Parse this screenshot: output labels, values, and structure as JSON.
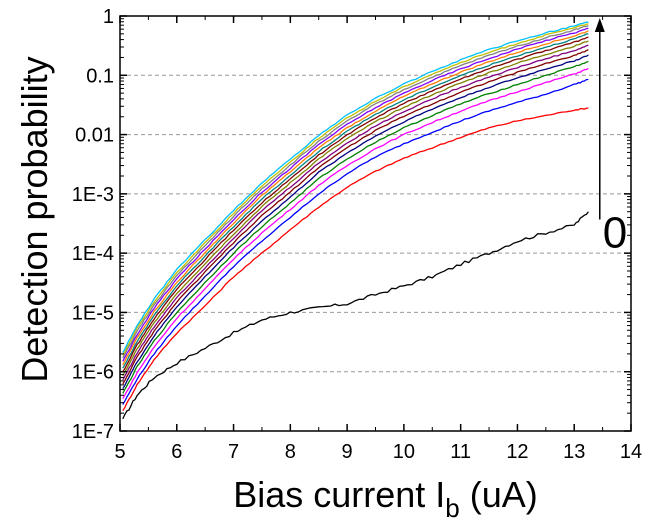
{
  "chart_data": {
    "type": "line",
    "xlabel": "Bias current I_b (uA)",
    "xlabel_main": "Bias current I",
    "xlabel_sub": "b",
    "xlabel_tail": " (uA)",
    "ylabel": "Detection probability",
    "xlim": [
      5,
      14
    ],
    "ylim": [
      1e-07,
      1
    ],
    "y_scale": "log",
    "grid": "horizontal dashed at decades",
    "x_ticks": [
      "5",
      "6",
      "7",
      "8",
      "9",
      "10",
      "11",
      "12",
      "13",
      "14"
    ],
    "y_ticks": [
      "1E-7",
      "1E-6",
      "1E-5",
      "1E-4",
      "1E-3",
      "0.01",
      "0.1",
      "1"
    ],
    "annotation": {
      "text": "0",
      "arrow": "upward, from lowest curve toward top curves at x ≈ 13.45"
    },
    "x": [
      5.05,
      5.3,
      5.6,
      6.0,
      6.5,
      7.0,
      7.5,
      8.0,
      8.5,
      9.0,
      9.5,
      10.0,
      10.5,
      11.0,
      11.5,
      12.0,
      12.5,
      13.0,
      13.25
    ],
    "series": [
      {
        "color": "#000000",
        "values": [
          1.6e-07,
          4e-07,
          8e-07,
          1.4e-06,
          2.5e-06,
          4.5e-06,
          7.5e-06,
          1e-05,
          1.2e-05,
          1.4e-05,
          2e-05,
          2.8e-05,
          4e-05,
          6.5e-05,
          0.0001,
          0.00016,
          0.00022,
          0.0003,
          0.0005
        ]
      },
      {
        "color": "#ff0000",
        "values": [
          2.2e-07,
          6e-07,
          1.6e-06,
          4.5e-06,
          1.3e-05,
          4e-05,
          0.0001,
          0.00025,
          0.0006,
          0.0013,
          0.0024,
          0.004,
          0.006,
          0.009,
          0.013,
          0.017,
          0.021,
          0.026,
          0.028
        ]
      },
      {
        "color": "#0000ff",
        "values": [
          2.8e-07,
          7.5e-07,
          2e-06,
          6e-06,
          1.9e-05,
          6e-05,
          0.00016,
          0.0004,
          0.001,
          0.0022,
          0.0042,
          0.007,
          0.011,
          0.017,
          0.025,
          0.035,
          0.048,
          0.07,
          0.085
        ]
      },
      {
        "color": "#ff00ff",
        "values": [
          3.5e-07,
          9.5e-07,
          2.6e-06,
          8e-06,
          2.5e-05,
          8e-05,
          0.00022,
          0.00055,
          0.0014,
          0.003,
          0.0058,
          0.01,
          0.016,
          0.025,
          0.037,
          0.053,
          0.075,
          0.105,
          0.13
        ]
      },
      {
        "color": "#008000",
        "values": [
          4.3e-07,
          1.2e-06,
          3.3e-06,
          1e-05,
          3.2e-05,
          0.0001,
          0.00028,
          0.0007,
          0.0018,
          0.0039,
          0.0075,
          0.013,
          0.021,
          0.033,
          0.049,
          0.07,
          0.1,
          0.14,
          0.17
        ]
      },
      {
        "color": "#000080",
        "values": [
          5.2e-07,
          1.45e-06,
          4e-06,
          1.25e-05,
          4e-05,
          0.000125,
          0.00035,
          0.00088,
          0.0023,
          0.0049,
          0.0095,
          0.0165,
          0.027,
          0.042,
          0.063,
          0.09,
          0.128,
          0.175,
          0.22
        ]
      },
      {
        "color": "#800000",
        "values": [
          6.2e-07,
          1.75e-06,
          4.8e-06,
          1.5e-05,
          4.8e-05,
          0.00015,
          0.00043,
          0.00108,
          0.0028,
          0.006,
          0.0117,
          0.0205,
          0.033,
          0.052,
          0.078,
          0.112,
          0.158,
          0.215,
          0.27
        ]
      },
      {
        "color": "#800080",
        "values": [
          7.3e-07,
          2.05e-06,
          5.7e-06,
          1.8e-05,
          5.7e-05,
          0.00018,
          0.00052,
          0.0013,
          0.0033,
          0.0072,
          0.014,
          0.0245,
          0.04,
          0.063,
          0.094,
          0.135,
          0.19,
          0.26,
          0.32
        ]
      },
      {
        "color": "#808000",
        "values": [
          8.5e-07,
          2.4e-06,
          6.7e-06,
          2.1e-05,
          6.7e-05,
          0.00021,
          0.00061,
          0.00153,
          0.0039,
          0.0085,
          0.0165,
          0.029,
          0.047,
          0.074,
          0.111,
          0.16,
          0.225,
          0.31,
          0.38
        ]
      },
      {
        "color": "#800000",
        "values": [
          1e-06,
          2.8e-06,
          7.8e-06,
          2.45e-05,
          7.8e-05,
          0.000245,
          0.00071,
          0.00178,
          0.0045,
          0.0099,
          0.0192,
          0.0335,
          0.055,
          0.086,
          0.129,
          0.186,
          0.26,
          0.36,
          0.44
        ]
      },
      {
        "color": "#008080",
        "values": [
          1.15e-06,
          3.2e-06,
          9e-06,
          2.8e-05,
          9e-05,
          0.00028,
          0.00082,
          0.00205,
          0.0052,
          0.0114,
          0.022,
          0.0385,
          0.063,
          0.099,
          0.148,
          0.214,
          0.3,
          0.41,
          0.5
        ]
      },
      {
        "color": "#ff8000",
        "values": [
          1.3e-06,
          3.7e-06,
          1.03e-05,
          3.2e-05,
          0.000103,
          0.00032,
          0.00094,
          0.00235,
          0.006,
          0.013,
          0.025,
          0.044,
          0.072,
          0.113,
          0.169,
          0.244,
          0.34,
          0.46,
          0.56
        ]
      },
      {
        "color": "#8000ff",
        "values": [
          1.5e-06,
          4.2e-06,
          1.17e-05,
          3.7e-05,
          0.000117,
          0.00037,
          0.00107,
          0.0027,
          0.0068,
          0.0148,
          0.0285,
          0.05,
          0.082,
          0.128,
          0.192,
          0.277,
          0.385,
          0.52,
          0.62
        ]
      },
      {
        "color": "#808080",
        "values": [
          1.7e-06,
          4.8e-06,
          1.33e-05,
          4.2e-05,
          0.000133,
          0.00042,
          0.00122,
          0.00305,
          0.0077,
          0.0168,
          0.0325,
          0.057,
          0.093,
          0.145,
          0.217,
          0.31,
          0.43,
          0.58,
          0.69
        ]
      },
      {
        "color": "#c0c000",
        "values": [
          1.9e-06,
          5.4e-06,
          1.5e-05,
          4.7e-05,
          0.00015,
          0.00047,
          0.00137,
          0.00345,
          0.0087,
          0.019,
          0.0365,
          0.064,
          0.105,
          0.163,
          0.243,
          0.345,
          0.475,
          0.63,
          0.74
        ]
      },
      {
        "color": "#00c0ff",
        "values": [
          2.1e-06,
          6e-06,
          1.68e-05,
          5.3e-05,
          0.000168,
          0.00053,
          0.00153,
          0.00385,
          0.0097,
          0.0212,
          0.041,
          0.071,
          0.117,
          0.182,
          0.27,
          0.38,
          0.52,
          0.68,
          0.79
        ]
      }
    ]
  }
}
